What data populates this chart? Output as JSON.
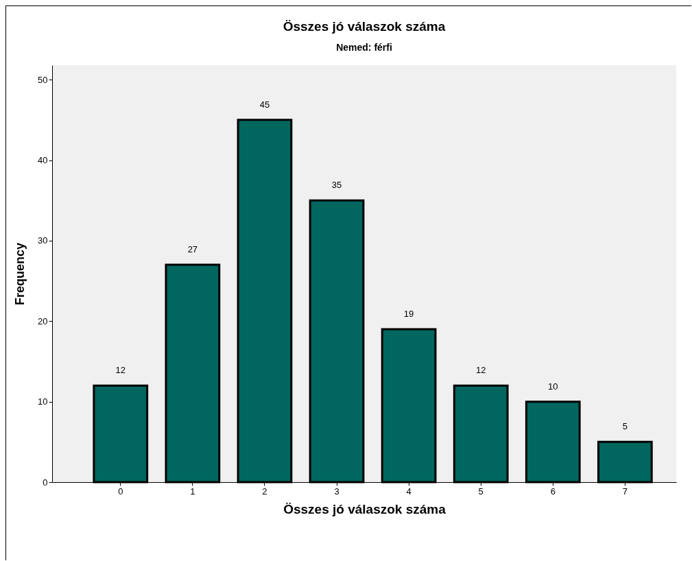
{
  "chart_data": {
    "type": "bar",
    "title": "Összes jó válaszok száma",
    "subtitle": "Nemed: férfi",
    "xlabel": "Összes jó válaszok száma",
    "ylabel": "Frequency",
    "categories": [
      "0",
      "1",
      "2",
      "3",
      "4",
      "5",
      "6",
      "7"
    ],
    "values": [
      12,
      27,
      45,
      35,
      19,
      12,
      10,
      5
    ],
    "color": "#00665e",
    "ylim": [
      0,
      51.8
    ],
    "yticks": [
      0,
      10,
      20,
      30,
      40,
      50
    ],
    "grid": false,
    "data_labels": true
  }
}
